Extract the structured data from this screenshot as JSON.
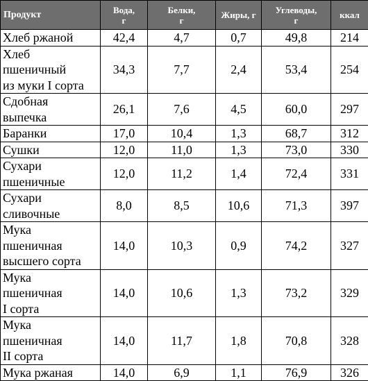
{
  "headers": [
    [
      "Продукт"
    ],
    [
      "Вода,",
      "г"
    ],
    [
      "Белки,",
      "г"
    ],
    [
      "Жиры, г"
    ],
    [
      "Углеводы,",
      "г"
    ],
    [
      "ккал"
    ]
  ],
  "rows": [
    {
      "name": [
        "Хлеб ржаной"
      ],
      "values": [
        "42,4",
        "4,7",
        "0,7",
        "49,8",
        "214"
      ]
    },
    {
      "name": [
        "Хлеб",
        "пшеничный",
        "из муки I сорта"
      ],
      "values": [
        "34,3",
        "7,7",
        "2,4",
        "53,4",
        "254"
      ]
    },
    {
      "name": [
        "Сдобная",
        "выпечка"
      ],
      "values": [
        "26,1",
        "7,6",
        "4,5",
        "60,0",
        "297"
      ]
    },
    {
      "name": [
        "Баранки"
      ],
      "values": [
        "17,0",
        "10,4",
        "1,3",
        "68,7",
        "312"
      ]
    },
    {
      "name": [
        "Сушки"
      ],
      "values": [
        "12,0",
        "11,0",
        "1,3",
        "73,0",
        "330"
      ]
    },
    {
      "name": [
        "Сухари",
        "пшеничные"
      ],
      "values": [
        "12,0",
        "11,2",
        "1,4",
        "72,4",
        "331"
      ]
    },
    {
      "name": [
        "Сухари",
        "сливочные"
      ],
      "values": [
        "8,0",
        "8,5",
        "10,6",
        "71,3",
        "397"
      ]
    },
    {
      "name": [
        "Мука",
        "пшеничная",
        "высшего сорта"
      ],
      "values": [
        "14,0",
        "10,3",
        "0,9",
        "74,2",
        "327"
      ]
    },
    {
      "name": [
        "Мука",
        "пшеничная",
        "I сорта"
      ],
      "values": [
        "14,0",
        "10,6",
        "1,3",
        "73,2",
        "329"
      ]
    },
    {
      "name": [
        "Мука",
        "пшеничная",
        "II сорта"
      ],
      "values": [
        "14,0",
        "11,7",
        "1,8",
        "70,8",
        "328"
      ]
    },
    {
      "name": [
        "Мука ржаная"
      ],
      "values": [
        "14,0",
        "6,9",
        "1,1",
        "76,9",
        "326"
      ]
    }
  ]
}
